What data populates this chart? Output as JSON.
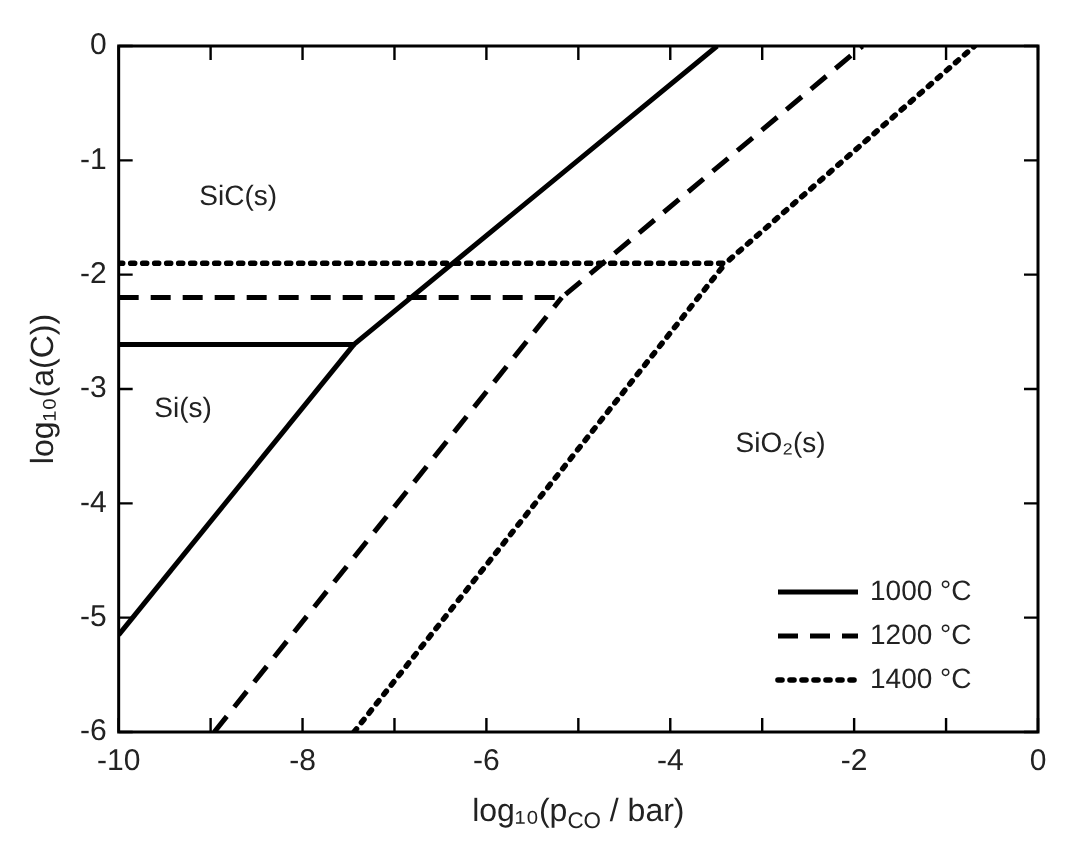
{
  "chart_data": {
    "type": "line",
    "xlabel": "log₁₀(p$_{CO}$ / bar)",
    "ylabel": "log₁₀(a(C))",
    "xlim": [
      -10,
      0
    ],
    "xticks": [
      -10,
      {
        "value": -9,
        "label": null
      },
      -8,
      {
        "value": -7,
        "label": null
      },
      -6,
      {
        "value": -5,
        "label": null
      },
      -4,
      {
        "value": -3,
        "label": null
      },
      -2,
      {
        "value": -1,
        "label": null
      },
      0
    ],
    "ylim": [
      -6,
      0
    ],
    "yticks": [
      -6,
      -5,
      -4,
      -3,
      -2,
      -1,
      0
    ],
    "grid": false,
    "legend": "bottom right",
    "marker": "none",
    "series": [
      {
        "name": "1000 °C",
        "color": "#000000",
        "line_style": "solid",
        "x": [
          -10,
          -7.44,
          -3.49
        ],
        "values": [
          -2.61,
          -2.61,
          0
        ]
      },
      {
        "color": "#000000",
        "line_style": "solid",
        "x": [
          -10,
          -7.44
        ],
        "values": [
          -5.15,
          -2.61
        ]
      },
      {
        "name": "1200 °C",
        "color": "#000000",
        "line_style": "dashed",
        "x": [
          -10,
          -5.18,
          -1.91
        ],
        "values": [
          -2.2,
          -2.2,
          0
        ]
      },
      {
        "color": "#000000",
        "line_style": "dashed",
        "x": [
          -8.96,
          -5.18
        ],
        "values": [
          -6,
          -2.2
        ]
      },
      {
        "name": "1400 °C",
        "color": "#000000",
        "line_style": "dotted",
        "x": [
          -10,
          -3.4,
          -0.69
        ],
        "values": [
          -1.9,
          -1.9,
          0
        ]
      },
      {
        "color": "#000000",
        "line_style": "dotted",
        "x": [
          -7.44,
          -3.4
        ],
        "values": [
          -6,
          -1.9
        ]
      }
    ],
    "annotations": [
      "SiC(s)",
      "Si(s)",
      "SiO₂(s)"
    ]
  }
}
